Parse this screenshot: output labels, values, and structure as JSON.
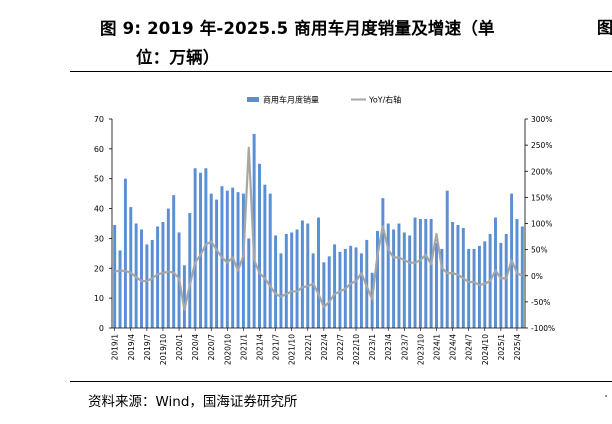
{
  "figure": {
    "title_line1": "图 9:  2019 年-2025.5 商用车月度销量及增速（单",
    "title_line2": "位：万辆）",
    "source": "资料来源：Wind，国海证券研究所"
  },
  "colors": {
    "bar": "#5b8fd3",
    "line": "#a6a6a6",
    "axis": "#000000"
  },
  "chart_data": {
    "type": "bar",
    "legend": [
      "商用车月度销量",
      "YoY/右轴"
    ],
    "legend_position": "top-right",
    "grid": false,
    "ylim": [
      0,
      70
    ],
    "y_ticks": [
      "0",
      "10",
      "20",
      "30",
      "40",
      "50",
      "60",
      "70"
    ],
    "y2lim": [
      -100,
      300
    ],
    "y2_ticks": [
      "-100%",
      "-50%",
      "0%",
      "50%",
      "100%",
      "150%",
      "200%",
      "250%",
      "300%"
    ],
    "x_tick_labels": [
      "2019/1",
      "2019/4",
      "2019/7",
      "2019/10",
      "2020/1",
      "2020/4",
      "2020/7",
      "2020/10",
      "2021/1",
      "2021/4",
      "2021/7",
      "2021/10",
      "2022/1",
      "2022/4",
      "2022/7",
      "2022/10",
      "2023/1",
      "2023/4",
      "2023/7",
      "2023/10",
      "2024/1",
      "2024/4",
      "2024/7",
      "2024/10",
      "2025/1",
      "2025/4"
    ],
    "categories": [
      "2019/1",
      "2019/2",
      "2019/3",
      "2019/4",
      "2019/5",
      "2019/6",
      "2019/7",
      "2019/8",
      "2019/9",
      "2019/10",
      "2019/11",
      "2019/12",
      "2020/1",
      "2020/2",
      "2020/3",
      "2020/4",
      "2020/5",
      "2020/6",
      "2020/7",
      "2020/8",
      "2020/9",
      "2020/10",
      "2020/11",
      "2020/12",
      "2021/1",
      "2021/2",
      "2021/3",
      "2021/4",
      "2021/5",
      "2021/6",
      "2021/7",
      "2021/8",
      "2021/9",
      "2021/10",
      "2021/11",
      "2021/12",
      "2022/1",
      "2022/2",
      "2022/3",
      "2022/4",
      "2022/5",
      "2022/6",
      "2022/7",
      "2022/8",
      "2022/9",
      "2022/10",
      "2022/11",
      "2022/12",
      "2023/1",
      "2023/2",
      "2023/3",
      "2023/4",
      "2023/5",
      "2023/6",
      "2023/7",
      "2023/8",
      "2023/9",
      "2023/10",
      "2023/11",
      "2023/12",
      "2024/1",
      "2024/2",
      "2024/3",
      "2024/4",
      "2024/5",
      "2024/6",
      "2024/7",
      "2024/8",
      "2024/9",
      "2024/10",
      "2024/11",
      "2024/12",
      "2025/1",
      "2025/2",
      "2025/3",
      "2025/4",
      "2025/5"
    ],
    "series": [
      {
        "name": "商用车月度销量",
        "axis": "left",
        "values": [
          34.5,
          26,
          50,
          40.5,
          35,
          33,
          28,
          29.5,
          34,
          35.5,
          40,
          44.5,
          32,
          21,
          38.5,
          53.5,
          52,
          53.5,
          45,
          43,
          47.5,
          46,
          47,
          45.5,
          45,
          30,
          65,
          55,
          48,
          45,
          31,
          25,
          31.5,
          32,
          33,
          36,
          35,
          25,
          37,
          22,
          24,
          28,
          25.5,
          26.5,
          27.5,
          27,
          25,
          29.5,
          18.5,
          32.5,
          43.5,
          35,
          33,
          35,
          32,
          31,
          37,
          36.5,
          36.5,
          36.5,
          28.5,
          26.5,
          46,
          35.5,
          34.5,
          33.5,
          26.5,
          26.5,
          27.5,
          29,
          31.5,
          37,
          28.5,
          31.5,
          45,
          36.5,
          34
        ]
      },
      {
        "name": "YoY/右轴",
        "axis": "right",
        "values": [
          8,
          10,
          9,
          6,
          -3,
          -10,
          -10,
          -5,
          3,
          5,
          8,
          6,
          -5,
          -65,
          -18,
          25,
          40,
          60,
          65,
          50,
          35,
          25,
          35,
          10,
          38,
          245,
          30,
          5,
          -5,
          -20,
          -35,
          -40,
          -35,
          -30,
          -30,
          -22,
          -20,
          -15,
          -35,
          -60,
          -50,
          -35,
          -30,
          -25,
          -15,
          -10,
          5,
          -20,
          -45,
          40,
          95,
          50,
          35,
          35,
          30,
          25,
          25,
          30,
          40,
          22,
          80,
          15,
          5,
          5,
          2,
          -5,
          -12,
          -12,
          -18,
          -15,
          -10,
          10,
          -5,
          -5,
          30,
          5,
          0
        ]
      }
    ]
  }
}
